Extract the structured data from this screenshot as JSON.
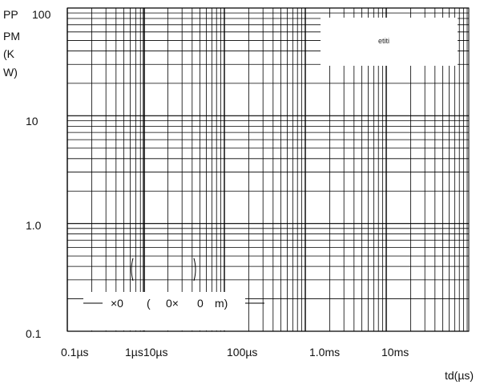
{
  "chart_data": {
    "type": "line",
    "title": "",
    "ylabel_lines": [
      "PP",
      "PM",
      "(K",
      "W)"
    ],
    "xlabel": "td(µs)",
    "y_scale": "log",
    "ylim": [
      0.1,
      100
    ],
    "y_ticks": [
      {
        "value": 100,
        "label": "100"
      },
      {
        "value": 10,
        "label": "10"
      },
      {
        "value": 1,
        "label": "1.0"
      },
      {
        "value": 0.1,
        "label": "0.1"
      }
    ],
    "x_tick_labels": [
      "0.1µs",
      "1µs10µs",
      "100µs",
      "1.0ms",
      "10ms"
    ],
    "grid": true,
    "legend": {
      "position": "top-right",
      "text": "etiti"
    },
    "annotation": {
      "position": "bottom-left",
      "parts": [
        "×0",
        "(",
        "0×",
        "0",
        "m)"
      ]
    },
    "series": []
  }
}
